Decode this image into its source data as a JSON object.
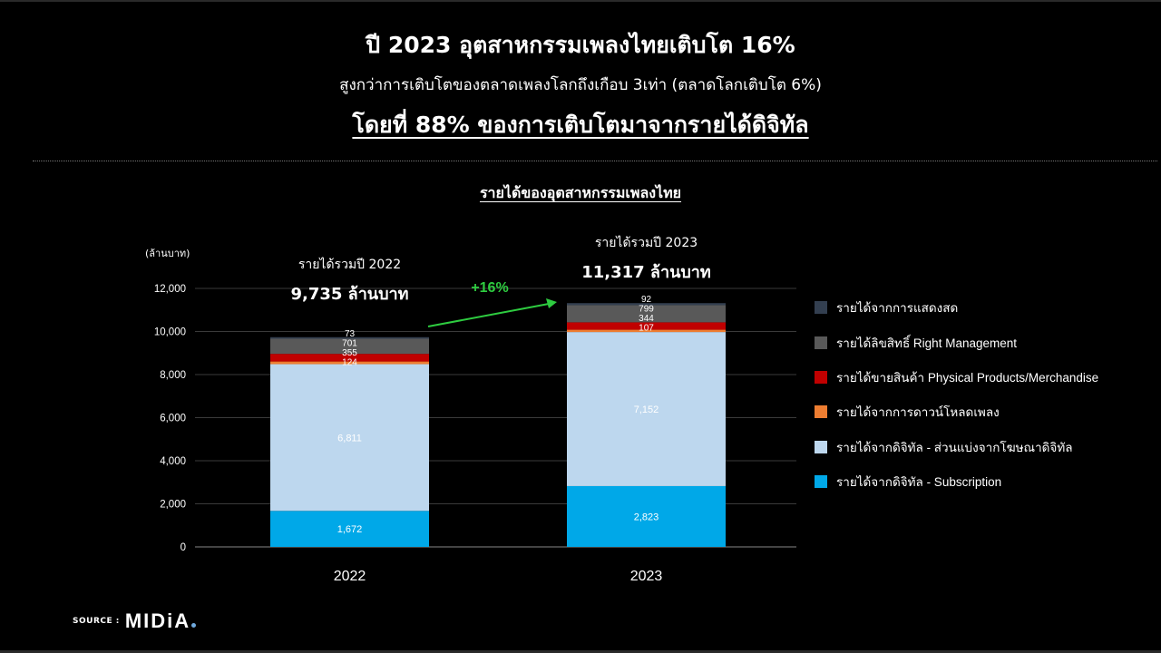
{
  "header": {
    "title": "ปี 2023 อุตสาหกรรมเพลงไทยเติบโต 16%",
    "subtitle": "สูงกว่าการเติบโตของตลาดเพลงโลกถึงเกือบ 3เท่า (ตลาดโลกเติบโต 6%)",
    "highlight": "โดยที่ 88% ของการเติบโตมาจากรายได้ดิจิทัล"
  },
  "source": {
    "label": "SOURCE :",
    "logo_text": "MIDiA"
  },
  "chart_data": {
    "type": "bar",
    "stacked": true,
    "title": "รายได้ของอุตสาหกรรมเพลงไทย",
    "ylabel": "(ล้านบาท)",
    "ylim": [
      0,
      12000
    ],
    "yticks": [
      0,
      2000,
      4000,
      6000,
      8000,
      10000,
      12000
    ],
    "ytick_labels": [
      "0",
      "2,000",
      "4,000",
      "6,000",
      "8,000",
      "10,000",
      "12,000"
    ],
    "grid": true,
    "legend_position": "right",
    "categories": [
      "2022",
      "2023"
    ],
    "totals": [
      {
        "label": "รายได้รวมปี 2022",
        "value_text": "9,735 ล้านบาท"
      },
      {
        "label": "รายได้รวมปี 2023",
        "value_text": "11,317 ล้านบาท"
      }
    ],
    "growth_label": "+16%",
    "growth_color": "#2ecc40",
    "series": [
      {
        "name": "รายได้จากดิจิทัล - Subscription",
        "color": "#00a8e8",
        "values": [
          1672,
          2823
        ],
        "labels": [
          "1,672",
          "2,823"
        ]
      },
      {
        "name": "รายได้จากดิจิทัล  - ส่วนแบ่งจากโฆษณาดิจิทัล",
        "color": "#bdd7ee",
        "values": [
          6811,
          7152
        ],
        "labels": [
          "6,811",
          "7,152"
        ]
      },
      {
        "name": "รายได้จากการดาวน์โหลดเพลง",
        "color": "#ed7d31",
        "values": [
          124,
          107
        ],
        "labels": [
          "124",
          "107"
        ]
      },
      {
        "name": "รายได้ขายสินค้า Physical Products/Merchandise",
        "color": "#c00000",
        "values": [
          355,
          344
        ],
        "labels": [
          "355",
          "344"
        ]
      },
      {
        "name": "รายได้ลิขสิทธิ์ Right Management",
        "color": "#595959",
        "values": [
          701,
          799
        ],
        "labels": [
          "701",
          "799"
        ]
      },
      {
        "name": "รายได้จากการแสดงสด",
        "color": "#333f50",
        "values": [
          73,
          92
        ],
        "labels": [
          "73",
          "92"
        ]
      }
    ]
  }
}
